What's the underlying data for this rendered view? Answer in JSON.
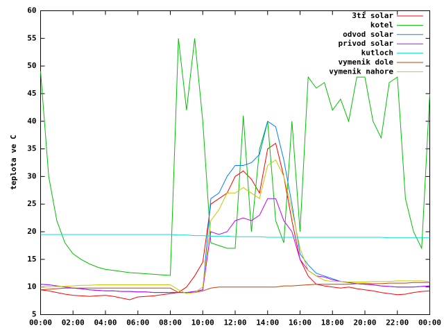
{
  "chart_data": {
    "type": "line",
    "ylabel": "teplota ve C",
    "x": [
      0,
      0.5,
      1,
      1.5,
      2,
      2.5,
      3,
      3.5,
      4,
      4.5,
      5,
      5.5,
      6,
      6.5,
      7,
      7.5,
      8,
      8.5,
      9,
      9.5,
      10,
      10.5,
      11,
      11.5,
      12,
      12.5,
      13,
      13.5,
      14,
      14.5,
      15,
      15.5,
      16,
      16.5,
      17,
      17.5,
      18,
      18.5,
      19,
      19.5,
      20,
      20.5,
      21,
      21.5,
      22,
      22.5,
      23,
      23.5,
      24
    ],
    "xlim": [
      0,
      24
    ],
    "xticks": [
      {
        "value": 0,
        "label": "00:00"
      },
      {
        "value": 2,
        "label": "02:00"
      },
      {
        "value": 4,
        "label": "04:00"
      },
      {
        "value": 6,
        "label": "06:00"
      },
      {
        "value": 8,
        "label": "08:00"
      },
      {
        "value": 10,
        "label": "10:00"
      },
      {
        "value": 12,
        "label": "12:00"
      },
      {
        "value": 14,
        "label": "14:00"
      },
      {
        "value": 16,
        "label": "16:00"
      },
      {
        "value": 18,
        "label": "18:00"
      },
      {
        "value": 20,
        "label": "20:00"
      },
      {
        "value": 22,
        "label": "22:00"
      },
      {
        "value": 24,
        "label": "00:00"
      }
    ],
    "ylim": [
      5,
      60
    ],
    "yticks": [
      5,
      10,
      15,
      20,
      25,
      30,
      35,
      40,
      45,
      50,
      55,
      60
    ],
    "legend": "top-right",
    "series": [
      {
        "name": "3ti solar",
        "color": "#ff0000",
        "values": [
          9.5,
          9.3,
          9,
          8.7,
          8.5,
          8.4,
          8.3,
          8.4,
          8.5,
          8.3,
          8,
          7.7,
          8.2,
          8.3,
          8.4,
          8.6,
          8.8,
          9,
          10,
          12,
          14.5,
          25,
          26,
          27,
          30,
          31,
          29.5,
          27,
          35,
          36,
          30,
          22,
          15,
          12,
          10.5,
          10.2,
          10,
          9.8,
          10,
          9.7,
          9.5,
          9.3,
          9,
          8.8,
          8.6,
          8.7,
          9,
          9.2,
          9.3
        ]
      },
      {
        "name": "kotel",
        "color": "#00c000",
        "values": [
          49,
          30,
          22,
          18,
          16,
          15,
          14.2,
          13.6,
          13.2,
          13,
          12.8,
          12.6,
          12.5,
          12.4,
          12.3,
          12.2,
          12.1,
          55,
          42,
          55,
          40,
          18,
          17.5,
          17,
          17,
          41,
          20,
          35,
          40,
          22,
          18,
          40,
          20,
          48,
          46,
          47,
          42,
          44,
          40,
          48,
          48,
          40,
          37,
          47,
          48,
          26,
          20,
          17,
          45
        ]
      },
      {
        "name": "odvod solar",
        "color": "#0080ff",
        "values": [
          10.5,
          10.4,
          10.2,
          10,
          9.8,
          9.7,
          9.5,
          9.4,
          9.3,
          9.3,
          9.2,
          9.2,
          9.1,
          9.1,
          9,
          9,
          9,
          9,
          9,
          9.2,
          9.5,
          26,
          27,
          30,
          32,
          32,
          32.5,
          34,
          40,
          39,
          33,
          25,
          16,
          14,
          12.5,
          12,
          11.5,
          11,
          10.8,
          10.6,
          10.5,
          10.4,
          10.2,
          10.1,
          10,
          10,
          10,
          10.1,
          10.2
        ]
      },
      {
        "name": "privod solar",
        "color": "#c000ff",
        "values": [
          10.5,
          10.4,
          10.2,
          10,
          9.8,
          9.7,
          9.5,
          9.4,
          9.3,
          9.3,
          9.2,
          9.2,
          9.1,
          9.1,
          9,
          9,
          9,
          9,
          9,
          9.2,
          9.5,
          20,
          19.5,
          20,
          22,
          22.5,
          22,
          23,
          26,
          26,
          22,
          20,
          15,
          13,
          12,
          11.8,
          11.3,
          11,
          10.8,
          10.6,
          10.5,
          10.4,
          10.2,
          10.1,
          10,
          10,
          10,
          10.1,
          10.2
        ]
      },
      {
        "name": "kutloch",
        "color": "#00e0e0",
        "values": [
          19.5,
          19.5,
          19.5,
          19.5,
          19.5,
          19.5,
          19.5,
          19.5,
          19.5,
          19.5,
          19.5,
          19.5,
          19.5,
          19.5,
          19.5,
          19.5,
          19.5,
          19.4,
          19.4,
          19.3,
          19.3,
          19.2,
          19.2,
          19.2,
          19.1,
          19.1,
          19.1,
          19.1,
          19,
          19,
          19,
          19,
          19,
          19,
          19,
          19,
          19,
          19,
          19,
          19,
          19,
          19,
          19,
          18.9,
          18.9,
          18.9,
          18.9,
          18.9,
          18.9
        ]
      },
      {
        "name": "vymenik dole",
        "color": "#c04000",
        "values": [
          9.5,
          9.6,
          9.7,
          9.8,
          9.8,
          9.8,
          9.8,
          9.8,
          9.8,
          9.8,
          9.8,
          9.8,
          9.8,
          9.8,
          9.8,
          9.8,
          9.8,
          9,
          9,
          9,
          9.3,
          9.8,
          10,
          10,
          10,
          10,
          10,
          10,
          10,
          10,
          10.2,
          10.2,
          10.3,
          10.4,
          10.5,
          10.5,
          10.5,
          10.5,
          10.5,
          10.6,
          10.6,
          10.6,
          10.6,
          10.7,
          10.7,
          10.7,
          10.8,
          10.8,
          10.8
        ]
      },
      {
        "name": "vymenik nahore",
        "color": "#c8c800",
        "values": [
          10,
          10,
          10.1,
          10.1,
          10.2,
          10.3,
          10.3,
          10.4,
          10.4,
          10.4,
          10.4,
          10.4,
          10.4,
          10.4,
          10.4,
          10.4,
          10.4,
          9.5,
          8.8,
          9,
          10,
          22,
          24,
          27,
          27,
          28,
          27,
          26,
          32,
          33,
          30,
          24,
          17,
          13,
          12,
          11.2,
          11,
          11,
          10.9,
          10.9,
          10.9,
          11,
          11,
          11,
          11.1,
          11.1,
          11.1,
          11.1,
          11
        ]
      }
    ]
  }
}
